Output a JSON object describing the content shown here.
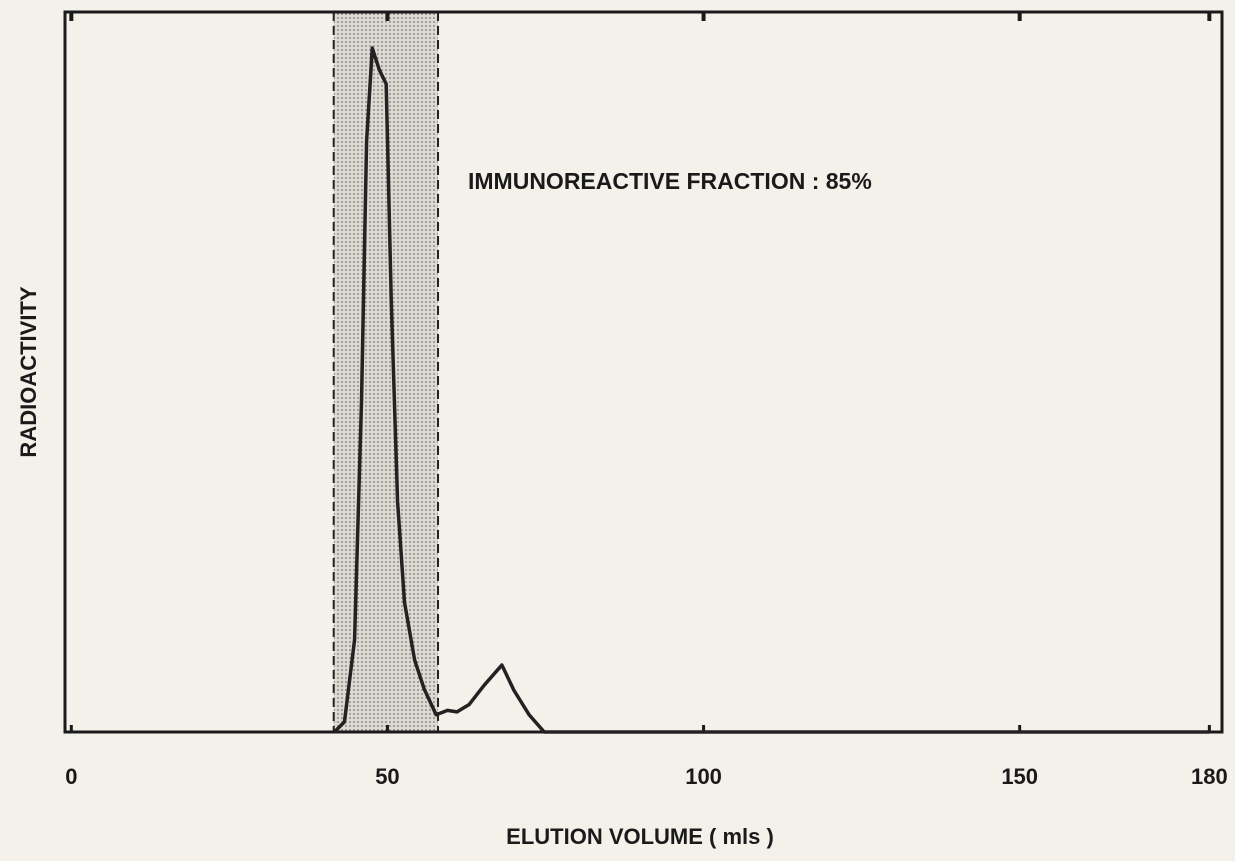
{
  "chart_data": {
    "type": "line",
    "xlabel": "ELUTION VOLUME ( mls )",
    "ylabel": "RADIOACTIVITY",
    "annotation": "IMMUNOREACTIVE FRACTION : 85%",
    "xlim": [
      -1,
      182
    ],
    "ylim": [
      0,
      100
    ],
    "xticks": [
      0,
      50,
      100,
      150,
      180
    ],
    "shaded_region": [
      41.5,
      58
    ],
    "x": [
      41.6,
      43.2,
      44.8,
      45.9,
      46.7,
      47.6,
      48.7,
      49.8,
      50.6,
      51.6,
      52.7,
      54.3,
      55.8,
      57.7,
      59.5,
      61,
      62.9,
      65.3,
      68.1,
      70,
      72.4,
      74.8,
      180
    ],
    "series": [
      {
        "color": "#222222",
        "values": [
          0,
          1.4,
          12.8,
          46,
          82,
          95,
          92,
          90,
          60,
          32,
          18,
          10,
          6,
          2.4,
          3,
          2.8,
          3.8,
          6.5,
          9.3,
          5.8,
          2.4,
          0,
          0
        ]
      }
    ]
  }
}
